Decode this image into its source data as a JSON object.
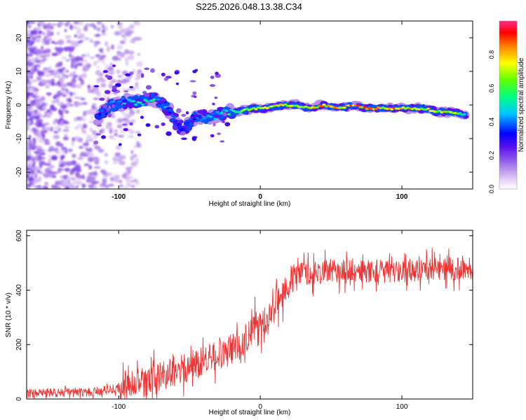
{
  "title": "S225.2026.048.13.38.C34",
  "colors": {
    "snr_line": "#ee3333",
    "spec_bg": "#ffffff",
    "frame": "#000000"
  },
  "chart_data": [
    {
      "type": "heatmap",
      "xlabel": "Height of straight line (km)",
      "ylabel": "Frequency (Hz)",
      "xlim": [
        -165,
        150
      ],
      "ylim": [
        -25,
        25
      ],
      "xticks": [
        -100,
        0,
        100
      ],
      "yticks": [
        -20,
        -10,
        0,
        10,
        20
      ],
      "colorbar": {
        "label": "Normalized spectral amplitude",
        "range": [
          0,
          1
        ],
        "ticks": [
          "0.0",
          "0.2",
          "0.4",
          "0.6",
          "0.8"
        ],
        "tick_values": [
          0.0,
          0.2,
          0.4,
          0.6,
          0.8
        ]
      },
      "ridge": [
        {
          "x": -115,
          "y": -4,
          "a": 0.35
        },
        {
          "x": -105,
          "y": 0,
          "a": 0.45
        },
        {
          "x": -95,
          "y": 1,
          "a": 0.5
        },
        {
          "x": -85,
          "y": 1,
          "a": 0.6
        },
        {
          "x": -75,
          "y": 2,
          "a": 0.55
        },
        {
          "x": -65,
          "y": -1,
          "a": 0.4
        },
        {
          "x": -55,
          "y": -8,
          "a": 0.35
        },
        {
          "x": -45,
          "y": -3,
          "a": 0.4
        },
        {
          "x": -35,
          "y": -4,
          "a": 0.5
        },
        {
          "x": -25,
          "y": -2,
          "a": 0.55
        },
        {
          "x": -15,
          "y": -2,
          "a": 0.65
        },
        {
          "x": -5,
          "y": -1,
          "a": 0.75
        },
        {
          "x": 5,
          "y": -1,
          "a": 0.8
        },
        {
          "x": 15,
          "y": 0,
          "a": 0.82
        },
        {
          "x": 25,
          "y": 0,
          "a": 0.8
        },
        {
          "x": 35,
          "y": -1,
          "a": 0.82
        },
        {
          "x": 45,
          "y": 0,
          "a": 0.85
        },
        {
          "x": 55,
          "y": -1,
          "a": 0.85
        },
        {
          "x": 65,
          "y": 0,
          "a": 0.88
        },
        {
          "x": 75,
          "y": -1,
          "a": 0.88
        },
        {
          "x": 85,
          "y": -1,
          "a": 0.85
        },
        {
          "x": 95,
          "y": -1,
          "a": 0.88
        },
        {
          "x": 105,
          "y": -1,
          "a": 0.85
        },
        {
          "x": 115,
          "y": -1,
          "a": 0.8
        },
        {
          "x": 125,
          "y": -2,
          "a": 0.8
        },
        {
          "x": 135,
          "y": -2,
          "a": 0.78
        },
        {
          "x": 145,
          "y": -3,
          "a": 0.6
        }
      ]
    },
    {
      "type": "line",
      "xlabel": "Height of straight line (km)",
      "ylabel": "SNR (10 * v/v)",
      "xlim": [
        -165,
        150
      ],
      "ylim": [
        0,
        620
      ],
      "xticks": [
        -100,
        0,
        100
      ],
      "yticks": [
        0,
        200,
        400,
        600
      ],
      "trend": {
        "x": [
          -165,
          -120,
          -100,
          -80,
          -60,
          -45,
          -35,
          -25,
          -15,
          -5,
          5,
          10,
          20,
          30,
          50,
          80,
          100,
          120,
          150
        ],
        "y": [
          20,
          25,
          40,
          60,
          100,
          130,
          150,
          170,
          200,
          260,
          290,
          340,
          430,
          460,
          470,
          470,
          470,
          480,
          480
        ]
      },
      "noise_amplitude": 60
    }
  ]
}
